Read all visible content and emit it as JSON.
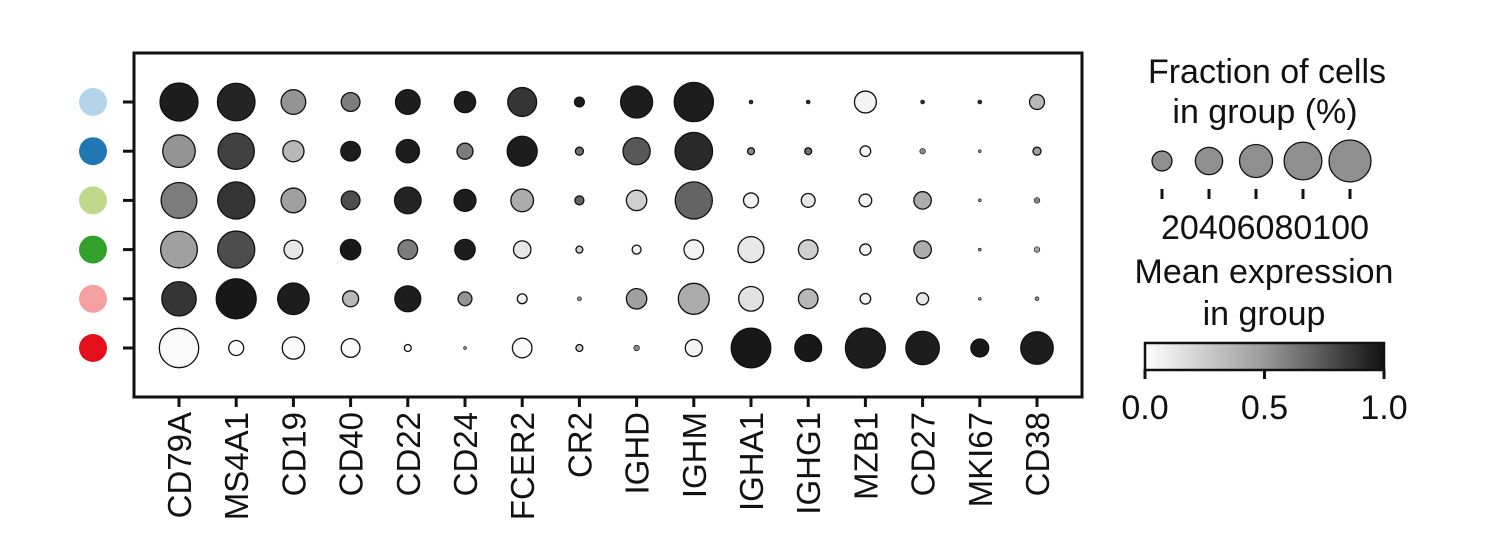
{
  "chart_data": {
    "type": "dotplot",
    "genes": [
      "CD79A",
      "MS4A1",
      "CD19",
      "CD40",
      "CD22",
      "CD24",
      "FCER2",
      "CR2",
      "IGHD",
      "IGHM",
      "IGHA1",
      "IGHG1",
      "MZB1",
      "CD27",
      "MKI67",
      "CD38"
    ],
    "groups": [
      {
        "color": "#b4d4ec"
      },
      {
        "color": "#1f78b4"
      },
      {
        "color": "#c0d88c"
      },
      {
        "color": "#33a02c"
      },
      {
        "color": "#f4a0a0"
      },
      {
        "color": "#e3101b"
      }
    ],
    "fraction": [
      [
        90,
        88,
        38,
        22,
        38,
        28,
        52,
        6,
        64,
        96,
        1,
        1,
        30,
        1,
        1,
        14
      ],
      [
        66,
        82,
        28,
        24,
        34,
        16,
        56,
        4,
        46,
        88,
        3,
        3,
        7,
        2,
        0.5,
        4
      ],
      [
        80,
        86,
        38,
        22,
        44,
        30,
        32,
        5,
        26,
        86,
        14,
        12,
        10,
        19,
        0.5,
        2
      ],
      [
        84,
        86,
        22,
        26,
        24,
        26,
        19,
        3,
        5,
        24,
        42,
        24,
        8,
        19,
        0.5,
        2
      ],
      [
        74,
        100,
        62,
        16,
        42,
        12,
        6,
        1,
        26,
        60,
        38,
        24,
        7,
        9,
        0.5,
        1
      ],
      [
        97,
        14,
        31,
        22,
        3,
        0.5,
        24,
        3,
        2,
        18,
        98,
        45,
        100,
        70,
        20,
        66
      ]
    ],
    "mean_expression": [
      [
        0.95,
        0.92,
        0.45,
        0.55,
        0.95,
        0.95,
        0.85,
        0.95,
        0.95,
        0.95,
        0.9,
        0.9,
        0.05,
        0.9,
        0.9,
        0.3
      ],
      [
        0.45,
        0.8,
        0.3,
        0.95,
        0.95,
        0.55,
        0.95,
        0.6,
        0.7,
        0.9,
        0.5,
        0.6,
        0.05,
        0.5,
        0.5,
        0.4
      ],
      [
        0.55,
        0.85,
        0.4,
        0.75,
        0.92,
        0.95,
        0.35,
        0.65,
        0.2,
        0.65,
        0.05,
        0.1,
        0.05,
        0.35,
        0.5,
        0.5
      ],
      [
        0.4,
        0.75,
        0.1,
        0.97,
        0.55,
        0.95,
        0.1,
        0.2,
        0.05,
        0.05,
        0.1,
        0.2,
        0.05,
        0.35,
        0.5,
        0.4
      ],
      [
        0.85,
        0.97,
        0.95,
        0.3,
        0.95,
        0.45,
        0.05,
        0.5,
        0.4,
        0.35,
        0.12,
        0.3,
        0.05,
        0.1,
        0.5,
        0.5
      ],
      [
        0.02,
        0.02,
        0.02,
        0.02,
        0.02,
        0.5,
        0.02,
        0.2,
        0.5,
        0.05,
        0.97,
        0.97,
        0.95,
        0.95,
        0.97,
        0.95
      ]
    ],
    "size_legend": {
      "title_line1": "Fraction of cells",
      "title_line2": "in group (%)",
      "values": [
        20,
        40,
        60,
        80,
        100
      ],
      "labels": [
        "20",
        "40",
        "60",
        "80",
        "100"
      ]
    },
    "color_legend": {
      "title_line1": "Mean expression",
      "title_line2": "in group",
      "ticks": [
        "0.0",
        "0.5",
        "1.0"
      ],
      "range": [
        0,
        1
      ],
      "colormap": "Greys",
      "color_low": "#ffffff",
      "color_high": "#111111"
    }
  }
}
